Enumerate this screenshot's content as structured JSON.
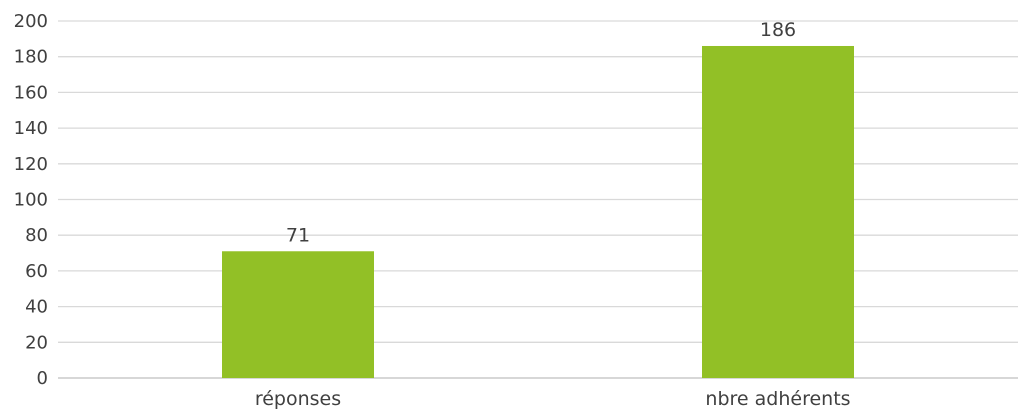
{
  "chart_data": {
    "type": "bar",
    "title": "",
    "xlabel": "",
    "ylabel": "",
    "categories": [
      "réponses",
      "nbre adhérents"
    ],
    "values": [
      71,
      186
    ],
    "data_labels": [
      "71",
      "186"
    ],
    "ylim": [
      0,
      200
    ],
    "yticks": [
      0,
      20,
      40,
      60,
      80,
      100,
      120,
      140,
      160,
      180,
      200
    ],
    "ytick_labels": [
      "0",
      "20",
      "40",
      "60",
      "80",
      "100",
      "120",
      "140",
      "160",
      "180",
      "200"
    ],
    "grid": true,
    "legend": "none",
    "bar_color": "#92c026"
  }
}
